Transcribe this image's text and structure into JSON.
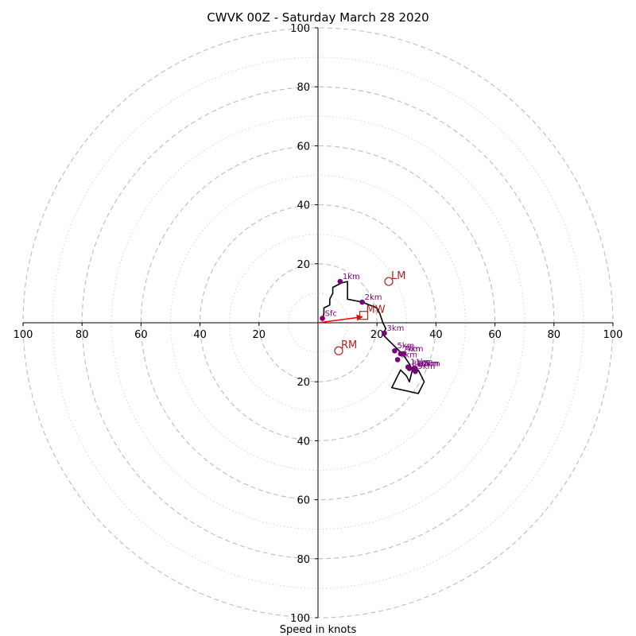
{
  "chart_data": {
    "type": "scatter",
    "title": "CWVK 00Z - Saturday March 28 2020",
    "xlabel": "Speed in knots",
    "ylabel": "",
    "xlim": [
      -100,
      100
    ],
    "ylim": [
      -100,
      100
    ],
    "grid": true,
    "major_rings": [
      20,
      40,
      60,
      80,
      100
    ],
    "minor_rings": [
      10,
      30,
      50,
      70,
      90
    ],
    "x_tick_labels": [
      "100",
      "80",
      "60",
      "40",
      "20",
      "20",
      "40",
      "60",
      "80",
      "100"
    ],
    "y_tick_labels": [
      "100",
      "80",
      "60",
      "40",
      "20",
      "20",
      "40",
      "60",
      "80",
      "100"
    ],
    "hodograph_path": [
      [
        1.5,
        1.5
      ],
      [
        2,
        3
      ],
      [
        2,
        5
      ],
      [
        4,
        6
      ],
      [
        4,
        8
      ],
      [
        5,
        10
      ],
      [
        5,
        12
      ],
      [
        8,
        13.5
      ],
      [
        10,
        14
      ],
      [
        10,
        10
      ],
      [
        10,
        8
      ],
      [
        15,
        7
      ],
      [
        20,
        5
      ],
      [
        21,
        3
      ],
      [
        22,
        0
      ],
      [
        23,
        -2
      ],
      [
        22.5,
        -3
      ],
      [
        22,
        -4
      ],
      [
        24,
        -6
      ],
      [
        26,
        -8
      ],
      [
        28,
        -10
      ],
      [
        29,
        -11
      ],
      [
        31,
        -14
      ],
      [
        32,
        -16
      ],
      [
        31,
        -20
      ],
      [
        30,
        -18
      ],
      [
        28,
        -16
      ],
      [
        26,
        -20
      ],
      [
        25,
        -22
      ],
      [
        34,
        -24
      ],
      [
        36,
        -20
      ],
      [
        35,
        -18
      ],
      [
        34,
        -16
      ],
      [
        33,
        -17
      ],
      [
        31.5,
        -15.5
      ]
    ],
    "height_markers": [
      {
        "label": "Sfc",
        "x": 1.5,
        "y": 1.5
      },
      {
        "label": "1km",
        "x": 7.5,
        "y": 14
      },
      {
        "label": "2km",
        "x": 15,
        "y": 7
      },
      {
        "label": "3km",
        "x": 22.5,
        "y": -3.5
      },
      {
        "label": "4km",
        "x": 29,
        "y": -10.5
      },
      {
        "label": "5km",
        "x": 26,
        "y": -9.5
      },
      {
        "label": "6km",
        "x": 27,
        "y": -12.5
      },
      {
        "label": "7km",
        "x": 28,
        "y": -10.5
      },
      {
        "label": "8km",
        "x": 31,
        "y": -15.5
      },
      {
        "label": "9km",
        "x": 33,
        "y": -16.5
      },
      {
        "label": "10km",
        "x": 32.5,
        "y": -15.5
      },
      {
        "label": "11km",
        "x": 30.5,
        "y": -15
      },
      {
        "label": "12km",
        "x": 33,
        "y": -15.5
      }
    ],
    "storm_motion": [
      {
        "label": "LM",
        "x": 24,
        "y": 14,
        "marker": "circle"
      },
      {
        "label": "MW",
        "x": 15.5,
        "y": 2.5,
        "marker": "square"
      },
      {
        "label": "RM",
        "x": 7,
        "y": -9.5,
        "marker": "circle"
      }
    ],
    "shear_arrow": {
      "from": [
        0,
        0
      ],
      "to": [
        15,
        2
      ]
    },
    "colors": {
      "axis": "#000000",
      "grid": "#bdbdbd",
      "hodograph": "#000000",
      "height_marker": "#7a007a",
      "storm_motion": "#b22222",
      "arrow": "#ff0000"
    }
  }
}
